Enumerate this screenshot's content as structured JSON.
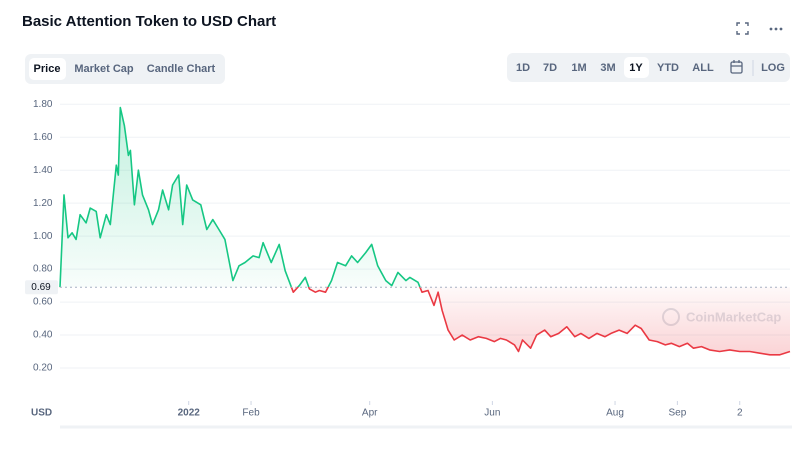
{
  "chart_data": {
    "type": "line",
    "title": "Basic Attention Token to USD Chart",
    "x": [
      "2021-10-29",
      "2021-10-31",
      "2021-11-02",
      "2021-11-04",
      "2021-11-06",
      "2021-11-08",
      "2021-11-11",
      "2021-11-13",
      "2021-11-16",
      "2021-11-18",
      "2021-11-21",
      "2021-11-23",
      "2021-11-26",
      "2021-11-27",
      "2021-11-28",
      "2021-11-30",
      "2021-12-02",
      "2021-12-03",
      "2021-12-05",
      "2021-12-07",
      "2021-12-09",
      "2021-12-12",
      "2021-12-14",
      "2021-12-17",
      "2021-12-19",
      "2021-12-22",
      "2021-12-24",
      "2021-12-27",
      "2021-12-29",
      "2021-12-31",
      "2022-01-03",
      "2022-01-07",
      "2022-01-10",
      "2022-01-13",
      "2022-01-16",
      "2022-01-19",
      "2022-01-23",
      "2022-01-26",
      "2022-01-29",
      "2022-02-02",
      "2022-02-05",
      "2022-02-07",
      "2022-02-11",
      "2022-02-15",
      "2022-02-18",
      "2022-02-22",
      "2022-02-25",
      "2022-02-28",
      "2022-03-02",
      "2022-03-05",
      "2022-03-07",
      "2022-03-10",
      "2022-03-13",
      "2022-03-16",
      "2022-03-20",
      "2022-03-23",
      "2022-03-26",
      "2022-03-30",
      "2022-04-02",
      "2022-04-05",
      "2022-04-09",
      "2022-04-12",
      "2022-04-15",
      "2022-04-19",
      "2022-04-21",
      "2022-04-25",
      "2022-04-27",
      "2022-04-30",
      "2022-05-03",
      "2022-05-05",
      "2022-05-07",
      "2022-05-10",
      "2022-05-13",
      "2022-05-17",
      "2022-05-21",
      "2022-05-25",
      "2022-05-29",
      "2022-06-02",
      "2022-06-05",
      "2022-06-08",
      "2022-06-12",
      "2022-06-14",
      "2022-06-16",
      "2022-06-20",
      "2022-06-23",
      "2022-06-27",
      "2022-06-30",
      "2022-07-04",
      "2022-07-08",
      "2022-07-12",
      "2022-07-15",
      "2022-07-19",
      "2022-07-23",
      "2022-07-27",
      "2022-07-30",
      "2022-08-03",
      "2022-08-07",
      "2022-08-11",
      "2022-08-14",
      "2022-08-18",
      "2022-08-22",
      "2022-08-26",
      "2022-08-29",
      "2022-09-02",
      "2022-09-06",
      "2022-09-09",
      "2022-09-13",
      "2022-09-17",
      "2022-09-22",
      "2022-09-27",
      "2022-10-02",
      "2022-10-07",
      "2022-10-12",
      "2022-10-17",
      "2022-10-22",
      "2022-10-27"
    ],
    "values": [
      0.69,
      1.25,
      0.99,
      1.02,
      0.98,
      1.13,
      1.08,
      1.17,
      1.15,
      0.99,
      1.13,
      1.07,
      1.43,
      1.37,
      1.78,
      1.67,
      1.49,
      1.52,
      1.19,
      1.4,
      1.25,
      1.16,
      1.07,
      1.16,
      1.28,
      1.16,
      1.31,
      1.37,
      1.07,
      1.31,
      1.22,
      1.19,
      1.04,
      1.1,
      1.04,
      0.98,
      0.73,
      0.82,
      0.84,
      0.88,
      0.87,
      0.96,
      0.84,
      0.95,
      0.79,
      0.66,
      0.7,
      0.75,
      0.68,
      0.66,
      0.67,
      0.66,
      0.73,
      0.84,
      0.82,
      0.88,
      0.84,
      0.9,
      0.95,
      0.82,
      0.73,
      0.7,
      0.78,
      0.73,
      0.75,
      0.72,
      0.66,
      0.67,
      0.58,
      0.66,
      0.55,
      0.43,
      0.37,
      0.4,
      0.37,
      0.39,
      0.38,
      0.36,
      0.38,
      0.37,
      0.34,
      0.3,
      0.37,
      0.32,
      0.4,
      0.43,
      0.39,
      0.41,
      0.45,
      0.39,
      0.41,
      0.38,
      0.41,
      0.39,
      0.41,
      0.43,
      0.41,
      0.46,
      0.44,
      0.37,
      0.36,
      0.34,
      0.35,
      0.33,
      0.35,
      0.32,
      0.33,
      0.31,
      0.3,
      0.31,
      0.3,
      0.3,
      0.29,
      0.28,
      0.28,
      0.3
    ],
    "baseline": 0.69,
    "color_above": "#16c784",
    "color_below": "#ea3943",
    "ylim": [
      0,
      1.85
    ],
    "yticks": [
      {
        "value": 0.2,
        "label": "0.20"
      },
      {
        "value": 0.4,
        "label": "0.40"
      },
      {
        "value": 0.6,
        "label": "0.60"
      },
      {
        "value": 0.8,
        "label": "0.80"
      },
      {
        "value": 1.0,
        "label": "1.00"
      },
      {
        "value": 1.2,
        "label": "1.20"
      },
      {
        "value": 1.4,
        "label": "1.40"
      },
      {
        "value": 1.6,
        "label": "1.60"
      },
      {
        "value": 1.8,
        "label": "1.80"
      }
    ],
    "xlim": [
      "2021-10-29",
      "2022-10-27"
    ],
    "xticks": [
      {
        "value": "2022-01-01",
        "label": "2022"
      },
      {
        "value": "2022-02-01",
        "label": "Feb"
      },
      {
        "value": "2022-04-01",
        "label": "Apr"
      },
      {
        "value": "2022-06-01",
        "label": "Jun"
      },
      {
        "value": "2022-08-01",
        "label": "Aug"
      },
      {
        "value": "2022-09-01",
        "label": "Sep"
      },
      {
        "value": "2022-10-02",
        "label": "2"
      }
    ],
    "grid": true,
    "currency": "USD",
    "watermark": "CoinMarketCap"
  },
  "controls": {
    "tabs": [
      "Price",
      "Market Cap",
      "Candle Chart"
    ],
    "ranges": [
      "1D",
      "7D",
      "1M",
      "3M",
      "1Y",
      "YTD",
      "ALL"
    ],
    "scale": "LOG"
  }
}
